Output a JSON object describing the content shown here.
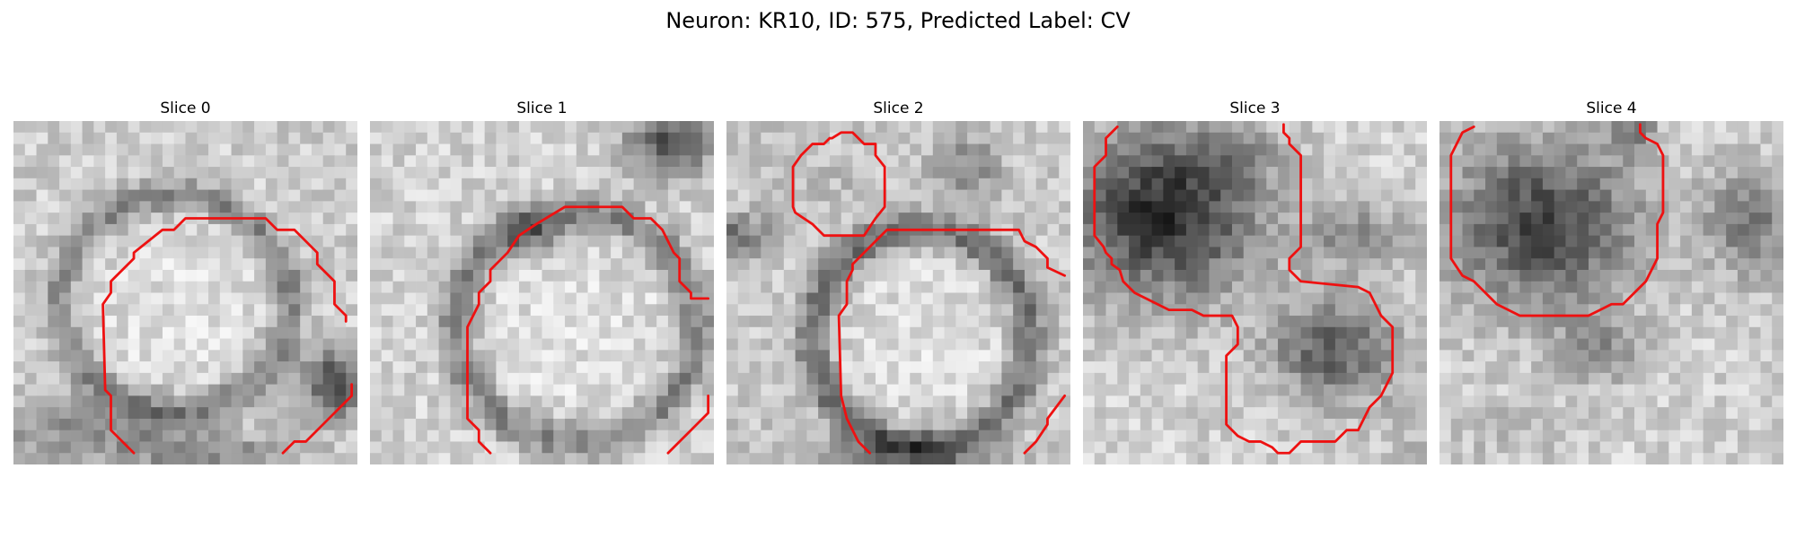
{
  "figure": {
    "title": "Neuron: KR10, ID: 575, Predicted Label: CV",
    "contour_color": "#ee1111",
    "panels": [
      {
        "title": "Slice 0",
        "image": "grayscale cell slice with red outline",
        "seed": 11
      },
      {
        "title": "Slice 1",
        "image": "grayscale cell slice with red outline",
        "seed": 23
      },
      {
        "title": "Slice 2",
        "image": "grayscale cell slice with red outline",
        "seed": 37
      },
      {
        "title": "Slice 3",
        "image": "grayscale cell slice with red outline",
        "seed": 41
      },
      {
        "title": "Slice 4",
        "image": "grayscale cell slice with red outline",
        "seed": 59
      }
    ]
  }
}
